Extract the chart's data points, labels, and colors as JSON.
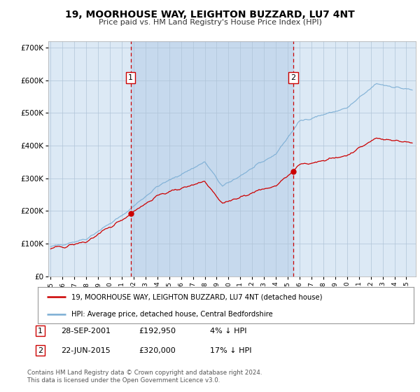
{
  "title": "19, MOORHOUSE WAY, LEIGHTON BUZZARD, LU7 4NT",
  "subtitle": "Price paid vs. HM Land Registry's House Price Index (HPI)",
  "bg_color": "#dce9f5",
  "outer_bg_color": "#ffffff",
  "hpi_color": "#7aadd4",
  "price_color": "#cc0000",
  "sale1_date": 2001.75,
  "sale1_price": 192950,
  "sale2_date": 2015.47,
  "sale2_price": 320000,
  "ylim": [
    0,
    720000
  ],
  "xlim": [
    1994.8,
    2025.8
  ],
  "ylabel_ticks": [
    0,
    100000,
    200000,
    300000,
    400000,
    500000,
    600000,
    700000
  ],
  "ylabel_labels": [
    "£0",
    "£100K",
    "£200K",
    "£300K",
    "£400K",
    "£500K",
    "£600K",
    "£700K"
  ],
  "legend_label_price": "19, MOORHOUSE WAY, LEIGHTON BUZZARD, LU7 4NT (detached house)",
  "legend_label_hpi": "HPI: Average price, detached house, Central Bedfordshire",
  "footnote1": "Contains HM Land Registry data © Crown copyright and database right 2024.",
  "footnote2": "This data is licensed under the Open Government Licence v3.0.",
  "table_rows": [
    {
      "num": "1",
      "date": "28-SEP-2001",
      "price": "£192,950",
      "hpi": "4% ↓ HPI"
    },
    {
      "num": "2",
      "date": "22-JUN-2015",
      "price": "£320,000",
      "hpi": "17% ↓ HPI"
    }
  ]
}
